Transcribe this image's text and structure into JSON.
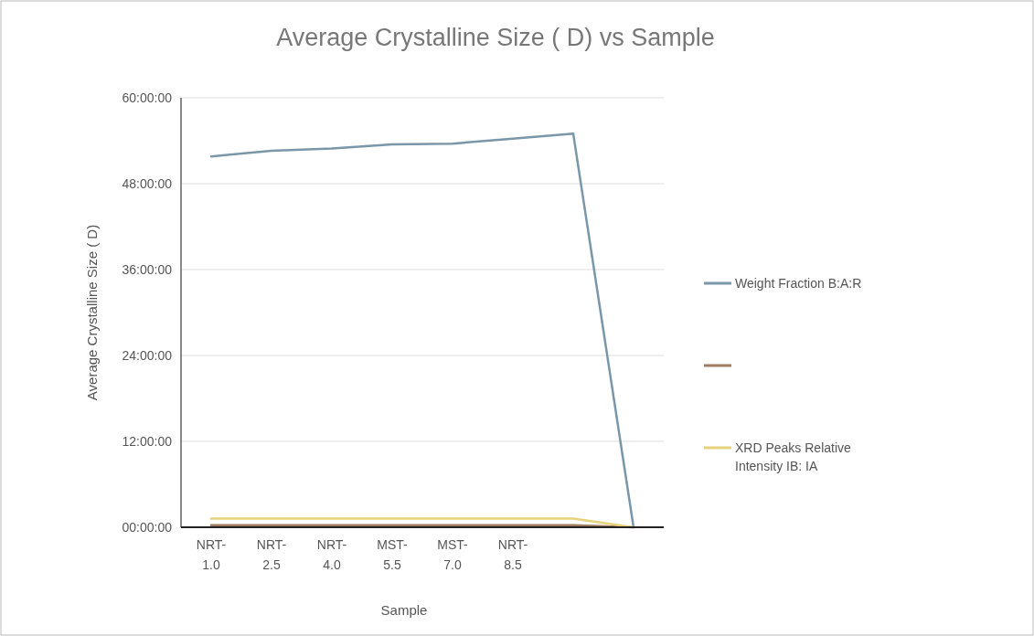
{
  "chart_data": {
    "type": "line",
    "title": "Average Crystalline  Size ( D) vs Sample",
    "xlabel": "Sample",
    "ylabel": "Average Crystalline  Size ( D)",
    "categories": [
      "NRT-\n1.0",
      "NRT-\n2.5",
      "NRT-\n4.0",
      "MST-\n5.5",
      "MST-\n7.0",
      "NRT-\n8.5",
      null,
      null
    ],
    "series": [
      {
        "name": "Weight Fraction B:A:R",
        "color": "#7a97aa",
        "values": [
          51.8,
          52.6,
          52.9,
          53.5,
          53.6,
          54.3,
          55,
          0
        ]
      },
      {
        "color": "#9e7a5e",
        "values": [
          0.3,
          0.3,
          0.3,
          0.3,
          0.3,
          0.3,
          0.3,
          0
        ]
      },
      {
        "name": "XRD Peaks Relative Intensity  IB: IA",
        "color": "#e6d27a",
        "values": [
          1.2,
          1.2,
          1.2,
          1.2,
          1.2,
          1.2,
          1.2,
          0
        ]
      }
    ],
    "ylim": [
      0,
      60
    ],
    "yticks": [
      {
        "value": 0,
        "label": "00:00:00"
      },
      {
        "value": 12,
        "label": "12:00:00"
      },
      {
        "value": 24,
        "label": "24:00:00"
      },
      {
        "value": 36,
        "label": "36:00:00"
      },
      {
        "value": 48,
        "label": "48:00:00"
      },
      {
        "value": 60,
        "label": "60:00:00"
      }
    ],
    "grid": "y",
    "legend": "right",
    "marker": "none",
    "line_style": "solid"
  }
}
